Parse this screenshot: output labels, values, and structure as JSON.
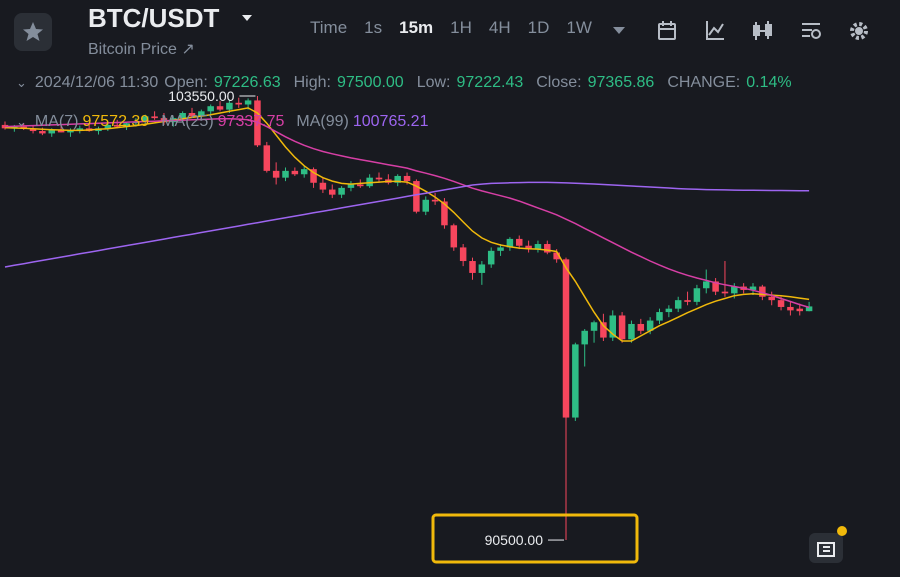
{
  "header": {
    "symbol": "BTC/USDT",
    "subtitle": "Bitcoin Price ↗",
    "intervals": [
      "Time",
      "1s",
      "15m",
      "1H",
      "4H",
      "1D",
      "1W"
    ],
    "active_interval": "15m"
  },
  "info": {
    "datetime": "2024/12/06 11:30",
    "fields": [
      {
        "label": "Open:",
        "value": "97226.63"
      },
      {
        "label": "High:",
        "value": "97500.00"
      },
      {
        "label": "Low:",
        "value": "97222.43"
      },
      {
        "label": "Close:",
        "value": "97365.86"
      },
      {
        "label": "CHANGE:",
        "value": "0.14%"
      }
    ]
  },
  "chart_data": {
    "type": "candlestick",
    "ylim": [
      89414,
      104461
    ],
    "up_color": "#2ebd85",
    "down_color": "#f6465d",
    "ohlc": [
      [
        102700,
        102800,
        102560,
        102600
      ],
      [
        102600,
        102700,
        102500,
        102650
      ],
      [
        102650,
        102750,
        102550,
        102580
      ],
      [
        102580,
        102680,
        102450,
        102520
      ],
      [
        102520,
        102620,
        102400,
        102450
      ],
      [
        102450,
        102600,
        102350,
        102560
      ],
      [
        102560,
        102700,
        102480,
        102480
      ],
      [
        102480,
        102600,
        102350,
        102550
      ],
      [
        102550,
        102680,
        102450,
        102600
      ],
      [
        102600,
        102750,
        102500,
        102520
      ],
      [
        102520,
        102650,
        102420,
        102600
      ],
      [
        102600,
        102750,
        102520,
        102700
      ],
      [
        102700,
        102850,
        102600,
        102650
      ],
      [
        102650,
        102800,
        102550,
        102750
      ],
      [
        102750,
        102900,
        102650,
        102800
      ],
      [
        102800,
        103000,
        102700,
        102950
      ],
      [
        102950,
        103100,
        102850,
        102900
      ],
      [
        102900,
        103050,
        102700,
        102780
      ],
      [
        102780,
        102950,
        102650,
        102900
      ],
      [
        102900,
        103100,
        102800,
        103050
      ],
      [
        103050,
        103200,
        102900,
        102950
      ],
      [
        102950,
        103150,
        102850,
        103100
      ],
      [
        103100,
        103300,
        103000,
        103250
      ],
      [
        103250,
        103400,
        103100,
        103150
      ],
      [
        103150,
        103450,
        103050,
        103350
      ],
      [
        103350,
        103500,
        103200,
        103300
      ],
      [
        103300,
        103480,
        103150,
        103420
      ],
      [
        103420,
        103550,
        102050,
        102100
      ],
      [
        102100,
        102200,
        101300,
        101350
      ],
      [
        101350,
        101600,
        100950,
        101150
      ],
      [
        101150,
        101450,
        101050,
        101350
      ],
      [
        101350,
        101450,
        101200,
        101250
      ],
      [
        101250,
        101500,
        101150,
        101400
      ],
      [
        101400,
        101450,
        100850,
        101000
      ],
      [
        101000,
        101150,
        100700,
        100800
      ],
      [
        100800,
        100950,
        100550,
        100650
      ],
      [
        100650,
        100900,
        100550,
        100850
      ],
      [
        100850,
        101050,
        100750,
        100950
      ],
      [
        100950,
        101100,
        100850,
        100900
      ],
      [
        100900,
        101250,
        100850,
        101150
      ],
      [
        101150,
        101300,
        101000,
        101100
      ],
      [
        101100,
        101250,
        100950,
        101000
      ],
      [
        101000,
        101250,
        100900,
        101200
      ],
      [
        101200,
        101300,
        100950,
        101050
      ],
      [
        101050,
        101100,
        100100,
        100150
      ],
      [
        100150,
        100600,
        100050,
        100500
      ],
      [
        100500,
        100700,
        100350,
        100450
      ],
      [
        100450,
        100550,
        99650,
        99750
      ],
      [
        99750,
        99800,
        99000,
        99100
      ],
      [
        99100,
        99200,
        98550,
        98700
      ],
      [
        98700,
        98800,
        98150,
        98350
      ],
      [
        98350,
        98700,
        98000,
        98600
      ],
      [
        98600,
        99100,
        98500,
        99000
      ],
      [
        99000,
        99200,
        98850,
        99100
      ],
      [
        99100,
        99400,
        99000,
        99350
      ],
      [
        99350,
        99450,
        99050,
        99150
      ],
      [
        99150,
        99300,
        98950,
        99050
      ],
      [
        99050,
        99300,
        98950,
        99200
      ],
      [
        99200,
        99300,
        98900,
        98950
      ],
      [
        98950,
        99050,
        98650,
        98750
      ],
      [
        98750,
        98800,
        90500,
        94100
      ],
      [
        94100,
        96300,
        94000,
        96250
      ],
      [
        96250,
        96700,
        95600,
        96650
      ],
      [
        96650,
        96950,
        96300,
        96900
      ],
      [
        96900,
        97150,
        96350,
        96450
      ],
      [
        96450,
        97250,
        96350,
        97100
      ],
      [
        97100,
        97200,
        96300,
        96400
      ],
      [
        96400,
        96950,
        96300,
        96850
      ],
      [
        96850,
        97000,
        96550,
        96650
      ],
      [
        96650,
        97050,
        96550,
        96950
      ],
      [
        96950,
        97300,
        96850,
        97200
      ],
      [
        97200,
        97400,
        97050,
        97300
      ],
      [
        97300,
        97650,
        97200,
        97550
      ],
      [
        97550,
        97800,
        97400,
        97500
      ],
      [
        97500,
        98000,
        97400,
        97900
      ],
      [
        97900,
        98450,
        97750,
        98100
      ],
      [
        98100,
        98200,
        97700,
        97800
      ],
      [
        97800,
        98700,
        97650,
        97750
      ],
      [
        97750,
        98050,
        97600,
        97950
      ],
      [
        97950,
        98050,
        97750,
        97850
      ],
      [
        97850,
        98050,
        97700,
        97950
      ],
      [
        97950,
        98000,
        97550,
        97650
      ],
      [
        97650,
        97800,
        97400,
        97550
      ],
      [
        97550,
        97650,
        97250,
        97350
      ],
      [
        97350,
        97500,
        97100,
        97250
      ],
      [
        97300,
        97450,
        97100,
        97226.63
      ],
      [
        97226.63,
        97500,
        97222.43,
        97365.86
      ]
    ],
    "series": [
      {
        "name": "MA(7)",
        "color": "#f0b90b",
        "values": [
          102620,
          102610,
          102600,
          102590,
          102570,
          102560,
          102550,
          102540,
          102540,
          102550,
          102570,
          102590,
          102620,
          102650,
          102680,
          102720,
          102760,
          102800,
          102840,
          102880,
          102920,
          102960,
          103000,
          103050,
          103100,
          103150,
          103200,
          103050,
          102750,
          102400,
          102050,
          101750,
          101500,
          101300,
          101150,
          101050,
          100980,
          100960,
          100980,
          101000,
          101020,
          101040,
          101040,
          101020,
          100900,
          100750,
          100580,
          100380,
          100130,
          99850,
          99580,
          99380,
          99250,
          99170,
          99120,
          99080,
          99060,
          99050,
          99020,
          98980,
          98500,
          98100,
          97650,
          97200,
          96800,
          96550,
          96350,
          96350,
          96500,
          96650,
          96800,
          96920,
          97050,
          97180,
          97300,
          97420,
          97520,
          97600,
          97680,
          97720,
          97740,
          97720,
          97700,
          97680,
          97650,
          97610,
          97572.39
        ]
      },
      {
        "name": "MA(25)",
        "color": "#d63fa5",
        "values": [
          102650,
          102660,
          102670,
          102680,
          102690,
          102700,
          102710,
          102720,
          102730,
          102740,
          102750,
          102760,
          102770,
          102780,
          102790,
          102800,
          102810,
          102820,
          102830,
          102840,
          102850,
          102860,
          102870,
          102880,
          102880,
          102870,
          102850,
          102780,
          102650,
          102500,
          102350,
          102220,
          102100,
          102000,
          101920,
          101850,
          101790,
          101730,
          101680,
          101630,
          101580,
          101530,
          101480,
          101430,
          101350,
          101280,
          101210,
          101130,
          101040,
          100940,
          100840,
          100760,
          100690,
          100620,
          100550,
          100460,
          100360,
          100260,
          100160,
          100060,
          99930,
          99800,
          99660,
          99520,
          99380,
          99240,
          99100,
          98960,
          98830,
          98700,
          98580,
          98470,
          98370,
          98280,
          98200,
          98130,
          98060,
          98000,
          97950,
          97900,
          97840,
          97770,
          97690,
          97600,
          97510,
          97420,
          97337.75
        ]
      },
      {
        "name": "MA(99)",
        "color": "#9d65f0",
        "values": [
          98525,
          98573,
          98621,
          98670,
          98718,
          98766,
          98814,
          98862,
          98911,
          98959,
          99007,
          99055,
          99103,
          99152,
          99200,
          99248,
          99296,
          99344,
          99393,
          99441,
          99489,
          99537,
          99585,
          99634,
          99682,
          99730,
          99778,
          99826,
          99875,
          99923,
          99971,
          100019,
          100067,
          100116,
          100164,
          100212,
          100260,
          100308,
          100357,
          100405,
          100453,
          100501,
          100549,
          100598,
          100646,
          100694,
          100742,
          100790,
          100839,
          100887,
          100935,
          100960,
          100980,
          100990,
          101000,
          101005,
          101010,
          101010,
          101010,
          101005,
          100995,
          100985,
          100975,
          100965,
          100950,
          100935,
          100920,
          100905,
          100890,
          100875,
          100860,
          100845,
          100830,
          100818,
          100808,
          100800,
          100795,
          100790,
          100785,
          100780,
          100778,
          100776,
          100774,
          100772,
          100770,
          100768,
          100765.21
        ]
      }
    ],
    "price_labels": [
      {
        "value": 103550,
        "label": "103550.00"
      },
      {
        "value": 90500,
        "label": "90500.00"
      }
    ]
  }
}
